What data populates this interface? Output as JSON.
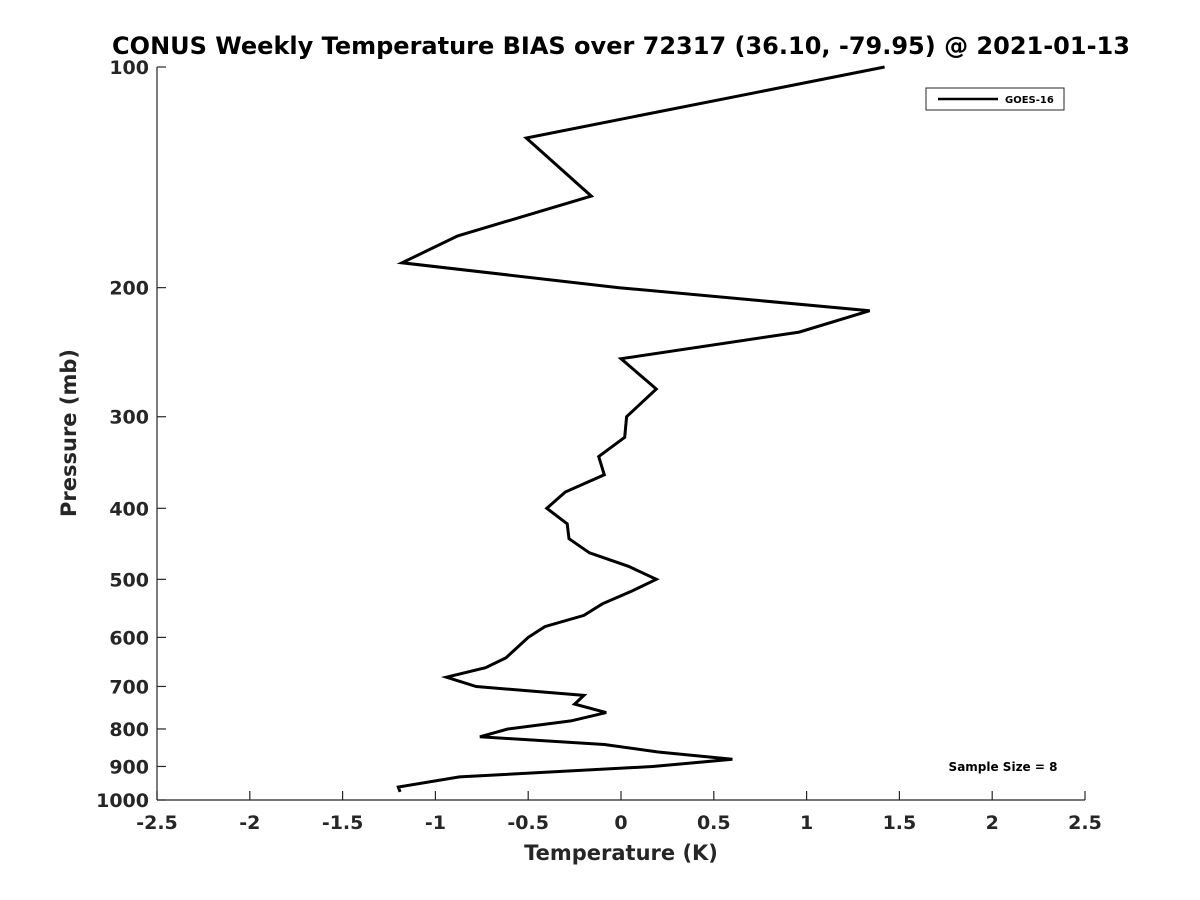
{
  "chart_data": {
    "type": "line",
    "title": "CONUS Weekly Temperature BIAS over 72317 (36.10, -79.95) @ 2021-01-13",
    "xlabel": "Temperature (K)",
    "ylabel": "Pressure (mb)",
    "xlim": [
      -2.5,
      2.5
    ],
    "ylim": [
      1000,
      100
    ],
    "y_scale": "log",
    "x_ticks": [
      "-2.5",
      "-2",
      "-1.5",
      "-1",
      "-0.5",
      "0",
      "0.5",
      "1",
      "1.5",
      "2",
      "2.5"
    ],
    "y_ticks": [
      "100",
      "200",
      "300",
      "400",
      "500",
      "600",
      "700",
      "800",
      "900",
      "1000"
    ],
    "grid": false,
    "legend_position": "top-right",
    "annotation": "Sample Size = 8",
    "series": [
      {
        "name": "GOES-16",
        "color": "#000000",
        "points": [
          {
            "x": 1.42,
            "y": 100
          },
          {
            "x": -0.51,
            "y": 125
          },
          {
            "x": -0.16,
            "y": 150
          },
          {
            "x": -0.88,
            "y": 170
          },
          {
            "x": -1.18,
            "y": 185
          },
          {
            "x": -0.01,
            "y": 200
          },
          {
            "x": 1.34,
            "y": 215
          },
          {
            "x": 0.96,
            "y": 230
          },
          {
            "x": 0.0,
            "y": 250
          },
          {
            "x": 0.19,
            "y": 275
          },
          {
            "x": 0.03,
            "y": 300
          },
          {
            "x": 0.02,
            "y": 320
          },
          {
            "x": -0.12,
            "y": 340
          },
          {
            "x": -0.09,
            "y": 360
          },
          {
            "x": -0.3,
            "y": 380
          },
          {
            "x": -0.4,
            "y": 400
          },
          {
            "x": -0.29,
            "y": 420
          },
          {
            "x": -0.28,
            "y": 440
          },
          {
            "x": -0.17,
            "y": 460
          },
          {
            "x": 0.04,
            "y": 480
          },
          {
            "x": 0.19,
            "y": 500
          },
          {
            "x": 0.05,
            "y": 520
          },
          {
            "x": -0.1,
            "y": 540
          },
          {
            "x": -0.2,
            "y": 560
          },
          {
            "x": -0.41,
            "y": 580
          },
          {
            "x": -0.5,
            "y": 600
          },
          {
            "x": -0.62,
            "y": 640
          },
          {
            "x": -0.73,
            "y": 660
          },
          {
            "x": -0.94,
            "y": 680
          },
          {
            "x": -0.78,
            "y": 700
          },
          {
            "x": -0.2,
            "y": 720
          },
          {
            "x": -0.25,
            "y": 740
          },
          {
            "x": -0.08,
            "y": 760
          },
          {
            "x": -0.27,
            "y": 780
          },
          {
            "x": -0.61,
            "y": 800
          },
          {
            "x": -0.76,
            "y": 820
          },
          {
            "x": -0.09,
            "y": 840
          },
          {
            "x": 0.2,
            "y": 860
          },
          {
            "x": 0.6,
            "y": 880
          },
          {
            "x": 0.17,
            "y": 900
          },
          {
            "x": -0.87,
            "y": 930
          },
          {
            "x": -1.2,
            "y": 960
          },
          {
            "x": -1.19,
            "y": 975
          }
        ]
      }
    ]
  }
}
